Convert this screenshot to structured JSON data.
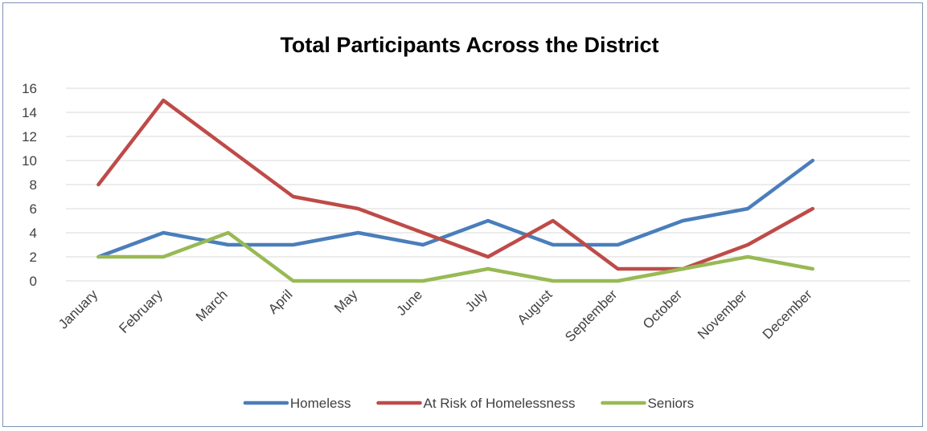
{
  "chart_data": {
    "type": "line",
    "title": "Total Participants Across the District",
    "xlabel": "",
    "ylabel": "",
    "categories": [
      "January",
      "February",
      "March",
      "April",
      "May",
      "June",
      "July",
      "August",
      "September",
      "October",
      "November",
      "December"
    ],
    "ylim": [
      0,
      16
    ],
    "yticks": [
      0,
      2,
      4,
      6,
      8,
      10,
      12,
      14,
      16
    ],
    "grid": true,
    "legend_position": "bottom",
    "series": [
      {
        "name": "Homeless",
        "color": "#4a7ebb",
        "values": [
          2,
          4,
          3,
          3,
          4,
          3,
          5,
          3,
          3,
          5,
          6,
          10
        ]
      },
      {
        "name": "At Risk of Homelessness",
        "color": "#be4b48",
        "values": [
          8,
          15,
          11,
          7,
          6,
          4,
          2,
          5,
          1,
          1,
          3,
          6
        ]
      },
      {
        "name": "Seniors",
        "color": "#98b954",
        "values": [
          2,
          2,
          4,
          0,
          0,
          0,
          1,
          0,
          0,
          1,
          2,
          1
        ]
      }
    ]
  }
}
